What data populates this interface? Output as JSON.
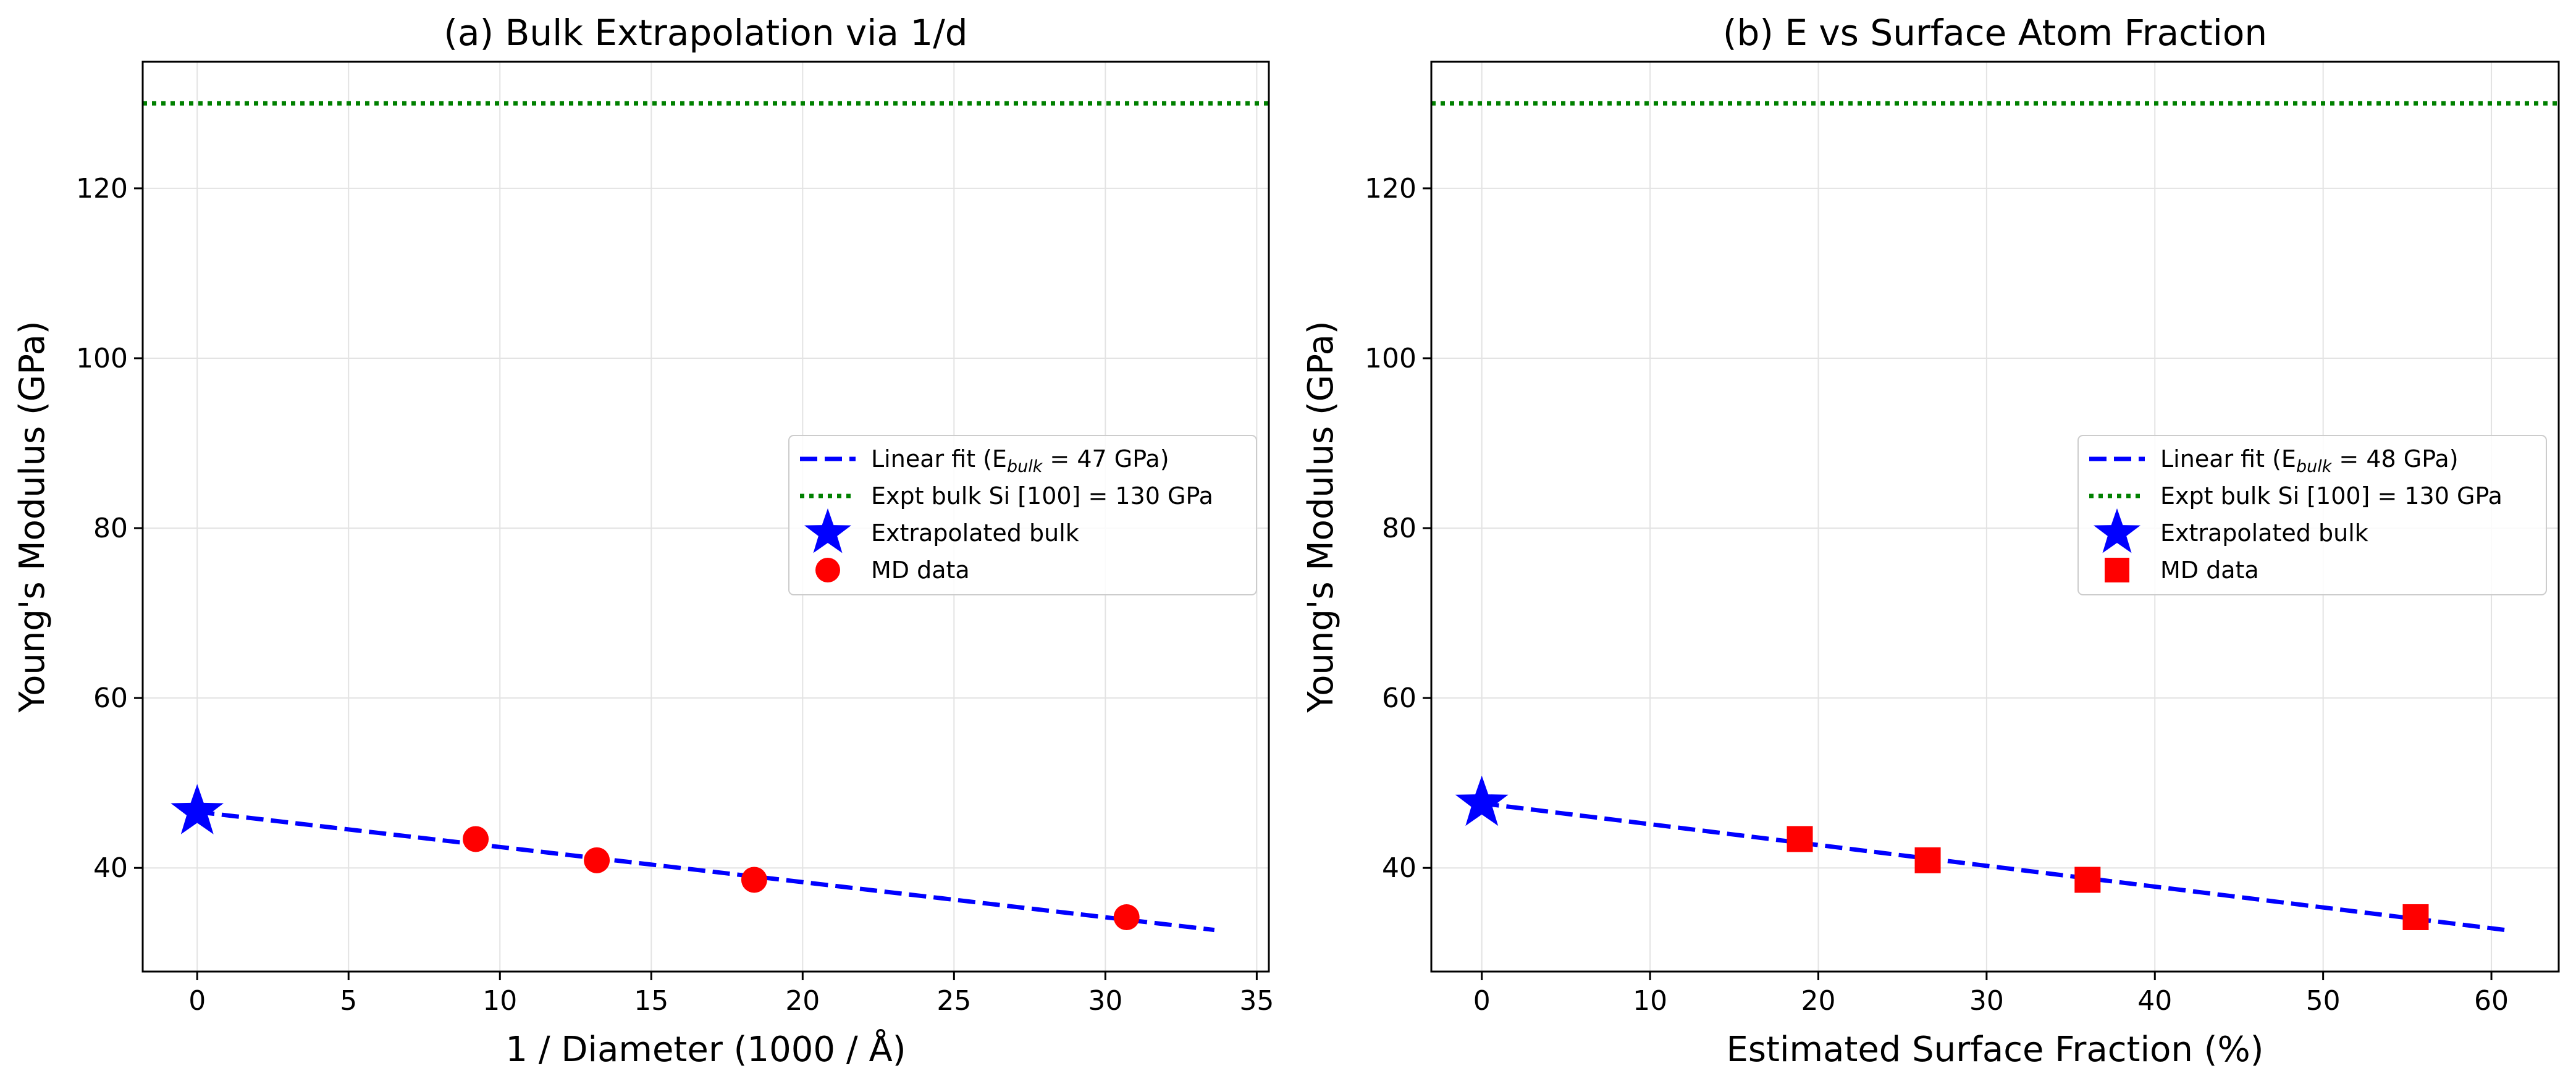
{
  "chart_data": [
    {
      "type": "scatter",
      "title": "(a) Bulk Extrapolation via 1/d",
      "xlabel": "1 / Diameter (1000 / Å)",
      "ylabel": "Young's Modulus (GPa)",
      "xlim": [
        -1.8,
        35.4
      ],
      "ylim": [
        27.8,
        134.9
      ],
      "xticks": [
        0,
        5,
        10,
        15,
        20,
        25,
        30,
        35
      ],
      "yticks": [
        40,
        60,
        80,
        100,
        120
      ],
      "grid": true,
      "legend_position": "center-right",
      "series": [
        {
          "name": "MD data",
          "marker": "circle",
          "color": "#ff0000",
          "x": [
            9.2,
            13.2,
            18.4,
            30.7
          ],
          "y": [
            43.4,
            40.9,
            38.6,
            34.2
          ]
        },
        {
          "name": "Extrapolated bulk",
          "marker": "star",
          "color": "#0000ff",
          "x": [
            0
          ],
          "y": [
            46.6
          ]
        }
      ],
      "fit_line": {
        "name": "Linear fit",
        "name_prefix": "Linear fit (E",
        "name_sub": "bulk",
        "name_suffix": " = 47 GPa)",
        "x": [
          0,
          33.6
        ],
        "y": [
          46.6,
          32.7
        ],
        "style": "dashed",
        "color": "#0000ff"
      },
      "reference_line": {
        "name": "Expt bulk Si [100] = 130 GPa",
        "y": 130,
        "style": "dotted",
        "color": "#008000"
      },
      "legend": [
        "Linear fit (E_bulk = 47 GPa)",
        "Expt bulk Si [100] = 130 GPa",
        "Extrapolated bulk",
        "MD data"
      ]
    },
    {
      "type": "scatter",
      "title": "(b) E vs Surface Atom Fraction",
      "xlabel": "Estimated Surface Fraction (%)",
      "ylabel": "Young's Modulus (GPa)",
      "xlim": [
        -3.0,
        64.0
      ],
      "ylim": [
        27.8,
        134.9
      ],
      "xticks": [
        0,
        10,
        20,
        30,
        40,
        50,
        60
      ],
      "yticks": [
        40,
        60,
        80,
        100,
        120
      ],
      "grid": true,
      "legend_position": "center-right",
      "series": [
        {
          "name": "MD data",
          "marker": "square",
          "color": "#ff0000",
          "x": [
            18.9,
            26.5,
            36.0,
            55.5
          ],
          "y": [
            43.4,
            40.9,
            38.6,
            34.2
          ]
        },
        {
          "name": "Extrapolated bulk",
          "marker": "star",
          "color": "#0000ff",
          "x": [
            0
          ],
          "y": [
            47.6
          ]
        }
      ],
      "fit_line": {
        "name": "Linear fit",
        "name_prefix": "Linear fit (E",
        "name_sub": "bulk",
        "name_suffix": " = 48 GPa)",
        "x": [
          0,
          60.8
        ],
        "y": [
          47.6,
          32.7
        ],
        "style": "dashed",
        "color": "#0000ff"
      },
      "reference_line": {
        "name": "Expt bulk Si [100] = 130 GPa",
        "y": 130,
        "style": "dotted",
        "color": "#008000"
      },
      "legend": [
        "Linear fit (E_bulk = 48 GPa)",
        "Expt bulk Si [100] = 130 GPa",
        "Extrapolated bulk",
        "MD data"
      ]
    }
  ]
}
